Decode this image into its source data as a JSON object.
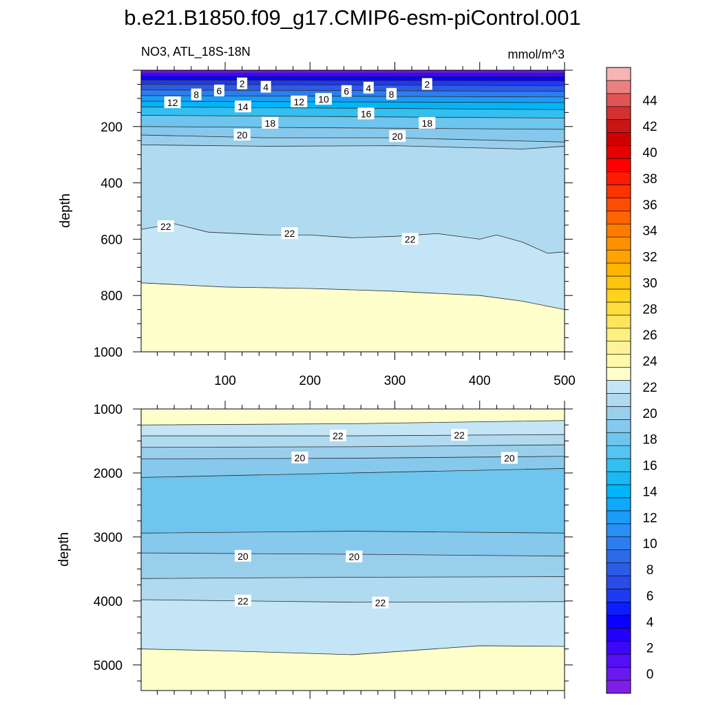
{
  "title": "b.e21.B1850.f09_g17.CMIP6-esm-piControl.001",
  "left_label": "NO3, ATL_18S-18N",
  "right_label": "mmol/m^3",
  "colorbar": {
    "tick_labels": [
      "0",
      "2",
      "4",
      "6",
      "8",
      "10",
      "12",
      "14",
      "16",
      "18",
      "20",
      "22",
      "24",
      "26",
      "28",
      "30",
      "32",
      "34",
      "36",
      "38",
      "40",
      "42",
      "44"
    ],
    "levels_min": -1,
    "levels_max": 46,
    "level_step": 1,
    "colors": [
      "#7F1FE6",
      "#6A18F0",
      "#5510F5",
      "#3D08F8",
      "#2200FA",
      "#0A00FF",
      "#0A1EFF",
      "#1E3AF0",
      "#2A4BE8",
      "#2C5BE5",
      "#2C6AE8",
      "#2C7DF0",
      "#2A8FF5",
      "#1A9CF8",
      "#10A8FA",
      "#00B5F8",
      "#1AB9F3",
      "#33BFF0",
      "#55C4F0",
      "#6EC5EE",
      "#86C9EC",
      "#9ACFEC",
      "#B0DAF0",
      "#C3E5F5",
      "#FFFFCC",
      "#FFF9AA",
      "#FFF29A",
      "#FFEE80",
      "#FFE55C",
      "#FFDD3C",
      "#FFD21E",
      "#FFC40F",
      "#FFB400",
      "#FFA300",
      "#FF9100",
      "#FF7B00",
      "#FF6400",
      "#FF4D00",
      "#FF3300",
      "#FF1A00",
      "#FF0000",
      "#E60000",
      "#D00000",
      "#C81515",
      "#D53030",
      "#E05555",
      "#EC8080",
      "#F8B3B3"
    ]
  },
  "chart_data": [
    {
      "type": "contour",
      "panel": "upper",
      "xlabel": "",
      "ylabel": "depth",
      "xlim": [
        1,
        500
      ],
      "ylim": [
        1000,
        0
      ],
      "x_ticks": [
        100,
        200,
        300,
        400,
        500
      ],
      "y_ticks": [
        200,
        400,
        600,
        800,
        1000
      ],
      "bands": [
        {
          "value": 0,
          "top": [
            [
              0,
              0
            ],
            [
              500,
              0
            ]
          ],
          "bottom": [
            [
              0,
              10
            ],
            [
              500,
              10
            ]
          ]
        },
        {
          "value": 2,
          "top": [
            [
              0,
              10
            ],
            [
              500,
              10
            ]
          ],
          "bottom": [
            [
              0,
              20
            ],
            [
              500,
              22
            ]
          ]
        },
        {
          "value": 4,
          "top": [
            [
              0,
              20
            ],
            [
              500,
              22
            ]
          ],
          "bottom": [
            [
              0,
              35
            ],
            [
              500,
              38
            ]
          ]
        },
        {
          "value": 6,
          "top": [
            [
              0,
              35
            ],
            [
              500,
              38
            ]
          ],
          "bottom": [
            [
              0,
              50
            ],
            [
              500,
              55
            ]
          ]
        },
        {
          "value": 8,
          "top": [
            [
              0,
              50
            ],
            [
              500,
              55
            ]
          ],
          "bottom": [
            [
              0,
              70
            ],
            [
              500,
              75
            ]
          ]
        },
        {
          "value": 10,
          "top": [
            [
              0,
              70
            ],
            [
              500,
              75
            ]
          ],
          "bottom": [
            [
              0,
              90
            ],
            [
              500,
              95
            ]
          ]
        },
        {
          "value": 12,
          "top": [
            [
              0,
              90
            ],
            [
              500,
              95
            ]
          ],
          "bottom": [
            [
              0,
              110
            ],
            [
              500,
              115
            ]
          ]
        },
        {
          "value": 14,
          "top": [
            [
              0,
              110
            ],
            [
              500,
              115
            ]
          ],
          "bottom": [
            [
              0,
              130
            ],
            [
              500,
              140
            ]
          ]
        },
        {
          "value": 16,
          "top": [
            [
              0,
              130
            ],
            [
              500,
              140
            ]
          ],
          "bottom": [
            [
              0,
              160
            ],
            [
              500,
              170
            ]
          ]
        },
        {
          "value": 18,
          "top": [
            [
              0,
              160
            ],
            [
              500,
              170
            ]
          ],
          "bottom": [
            [
              0,
              200
            ],
            [
              500,
              210
            ]
          ]
        },
        {
          "value": 19,
          "top": [
            [
              0,
              200
            ],
            [
              500,
              210
            ]
          ],
          "bottom": [
            [
              0,
              230
            ],
            [
              150,
              240
            ],
            [
              300,
              240
            ],
            [
              500,
              255
            ]
          ]
        },
        {
          "value": 20,
          "top": [
            [
              0,
              230
            ],
            [
              150,
              240
            ],
            [
              300,
              240
            ],
            [
              500,
              255
            ]
          ],
          "bottom": [
            [
              0,
              265
            ],
            [
              150,
              270
            ],
            [
              300,
              268
            ],
            [
              450,
              280
            ],
            [
              500,
              270
            ]
          ]
        },
        {
          "value": 21,
          "top": [
            [
              0,
              265
            ],
            [
              150,
              270
            ],
            [
              300,
              268
            ],
            [
              450,
              280
            ],
            [
              500,
              270
            ]
          ],
          "bottom": [
            [
              0,
              565
            ],
            [
              40,
              545
            ],
            [
              80,
              575
            ],
            [
              150,
              585
            ],
            [
              200,
              585
            ],
            [
              250,
              595
            ],
            [
              300,
              590
            ],
            [
              350,
              580
            ],
            [
              400,
              600
            ],
            [
              420,
              585
            ],
            [
              450,
              610
            ],
            [
              480,
              650
            ],
            [
              500,
              645
            ]
          ]
        },
        {
          "value": 22,
          "top": [
            [
              0,
              565
            ],
            [
              40,
              545
            ],
            [
              80,
              575
            ],
            [
              150,
              585
            ],
            [
              200,
              585
            ],
            [
              250,
              595
            ],
            [
              300,
              590
            ],
            [
              350,
              580
            ],
            [
              400,
              600
            ],
            [
              420,
              585
            ],
            [
              450,
              610
            ],
            [
              480,
              650
            ],
            [
              500,
              645
            ]
          ],
          "bottom": [
            [
              0,
              755
            ],
            [
              100,
              770
            ],
            [
              200,
              775
            ],
            [
              300,
              785
            ],
            [
              400,
              800
            ],
            [
              450,
              820
            ],
            [
              500,
              850
            ]
          ]
        },
        {
          "value": 23,
          "top": [
            [
              0,
              755
            ],
            [
              100,
              770
            ],
            [
              200,
              775
            ],
            [
              300,
              785
            ],
            [
              400,
              800
            ],
            [
              450,
              820
            ],
            [
              500,
              850
            ]
          ],
          "bottom": [
            [
              0,
              1000
            ],
            [
              500,
              1000
            ]
          ]
        }
      ],
      "contour_labels": [
        {
          "text": "2",
          "x": 120,
          "y": 48
        },
        {
          "text": "4",
          "x": 148,
          "y": 60
        },
        {
          "text": "6",
          "x": 93,
          "y": 73
        },
        {
          "text": "8",
          "x": 66,
          "y": 87
        },
        {
          "text": "12",
          "x": 38,
          "y": 115
        },
        {
          "text": "14",
          "x": 121,
          "y": 130
        },
        {
          "text": "12",
          "x": 187,
          "y": 112
        },
        {
          "text": "10",
          "x": 216,
          "y": 103
        },
        {
          "text": "6",
          "x": 243,
          "y": 75
        },
        {
          "text": "4",
          "x": 269,
          "y": 63
        },
        {
          "text": "8",
          "x": 296,
          "y": 85
        },
        {
          "text": "2",
          "x": 338,
          "y": 50
        },
        {
          "text": "16",
          "x": 266,
          "y": 155
        },
        {
          "text": "18",
          "x": 153,
          "y": 188
        },
        {
          "text": "18",
          "x": 338,
          "y": 188
        },
        {
          "text": "20",
          "x": 120,
          "y": 230
        },
        {
          "text": "20",
          "x": 303,
          "y": 235
        },
        {
          "text": "22",
          "x": 30,
          "y": 555
        },
        {
          "text": "22",
          "x": 176,
          "y": 580
        },
        {
          "text": "22",
          "x": 318,
          "y": 600
        }
      ]
    },
    {
      "type": "contour",
      "panel": "lower",
      "xlabel": "",
      "ylabel": "depth",
      "xlim": [
        1,
        500
      ],
      "ylim": [
        5400,
        1000
      ],
      "x_ticks": [
        100,
        200,
        300,
        400,
        500
      ],
      "y_ticks": [
        1000,
        2000,
        3000,
        4000,
        5000
      ],
      "bands": [
        {
          "value": 23,
          "top": [
            [
              0,
              1000
            ],
            [
              500,
              1000
            ]
          ],
          "bottom": [
            [
              0,
              1250
            ],
            [
              250,
              1230
            ],
            [
              500,
              1180
            ]
          ]
        },
        {
          "value": 22,
          "top": [
            [
              0,
              1250
            ],
            [
              250,
              1230
            ],
            [
              500,
              1180
            ]
          ],
          "bottom": [
            [
              0,
              1420
            ],
            [
              250,
              1420
            ],
            [
              500,
              1400
            ]
          ]
        },
        {
          "value": 21,
          "top": [
            [
              0,
              1420
            ],
            [
              250,
              1420
            ],
            [
              500,
              1400
            ]
          ],
          "bottom": [
            [
              0,
              1600
            ],
            [
              250,
              1590
            ],
            [
              500,
              1560
            ]
          ]
        },
        {
          "value": 20,
          "top": [
            [
              0,
              1600
            ],
            [
              250,
              1590
            ],
            [
              500,
              1560
            ]
          ],
          "bottom": [
            [
              0,
              1780
            ],
            [
              250,
              1770
            ],
            [
              500,
              1740
            ]
          ]
        },
        {
          "value": 19,
          "top": [
            [
              0,
              1780
            ],
            [
              250,
              1770
            ],
            [
              500,
              1740
            ]
          ],
          "bottom": [
            [
              0,
              2070
            ],
            [
              250,
              2000
            ],
            [
              500,
              1930
            ]
          ]
        },
        {
          "value": 18,
          "top": [
            [
              0,
              2070
            ],
            [
              250,
              2000
            ],
            [
              500,
              1930
            ]
          ],
          "bottom": [
            [
              0,
              2940
            ],
            [
              250,
              2910
            ],
            [
              500,
              2940
            ]
          ]
        },
        {
          "value": 19,
          "top": [
            [
              0,
              2940
            ],
            [
              250,
              2910
            ],
            [
              500,
              2940
            ]
          ],
          "bottom": [
            [
              0,
              3250
            ],
            [
              250,
              3270
            ],
            [
              500,
              3300
            ]
          ]
        },
        {
          "value": 20,
          "top": [
            [
              0,
              3250
            ],
            [
              250,
              3270
            ],
            [
              500,
              3300
            ]
          ],
          "bottom": [
            [
              0,
              3650
            ],
            [
              250,
              3630
            ],
            [
              500,
              3620
            ]
          ]
        },
        {
          "value": 21,
          "top": [
            [
              0,
              3650
            ],
            [
              250,
              3630
            ],
            [
              500,
              3620
            ]
          ],
          "bottom": [
            [
              0,
              3980
            ],
            [
              250,
              4020
            ],
            [
              500,
              4010
            ]
          ]
        },
        {
          "value": 22,
          "top": [
            [
              0,
              3980
            ],
            [
              250,
              4020
            ],
            [
              500,
              4010
            ]
          ],
          "bottom": [
            [
              0,
              4750
            ],
            [
              100,
              4780
            ],
            [
              250,
              4840
            ],
            [
              400,
              4700
            ],
            [
              500,
              4710
            ]
          ]
        },
        {
          "value": 23,
          "top": [
            [
              0,
              4750
            ],
            [
              100,
              4780
            ],
            [
              250,
              4840
            ],
            [
              400,
              4700
            ],
            [
              500,
              4710
            ]
          ],
          "bottom": [
            [
              0,
              5400
            ],
            [
              500,
              5400
            ]
          ]
        }
      ],
      "contour_labels": [
        {
          "text": "22",
          "x": 233,
          "y": 1420
        },
        {
          "text": "22",
          "x": 376,
          "y": 1410
        },
        {
          "text": "20",
          "x": 188,
          "y": 1765
        },
        {
          "text": "20",
          "x": 435,
          "y": 1770
        },
        {
          "text": "20",
          "x": 121,
          "y": 3300
        },
        {
          "text": "20",
          "x": 252,
          "y": 3310
        },
        {
          "text": "22",
          "x": 121,
          "y": 4000
        },
        {
          "text": "22",
          "x": 283,
          "y": 4030
        }
      ]
    }
  ]
}
